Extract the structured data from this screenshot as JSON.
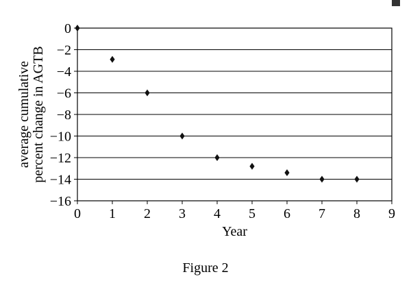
{
  "figure_caption": "Figure 2",
  "corner_marker_color": "#333333",
  "chart_data": {
    "type": "scatter",
    "title": "",
    "xlabel": "Year",
    "ylabel_lines": [
      "average cumulative",
      "percent change in AGTB"
    ],
    "xlim": [
      0,
      9
    ],
    "ylim": [
      -16,
      0
    ],
    "xticks": [
      0,
      1,
      2,
      3,
      4,
      5,
      6,
      7,
      8,
      9
    ],
    "xtick_labels": [
      "0",
      "1",
      "2",
      "3",
      "4",
      "5",
      "6",
      "7",
      "8",
      "9"
    ],
    "yticks": [
      0,
      -2,
      -4,
      -6,
      -8,
      -10,
      -12,
      -14,
      -16
    ],
    "ytick_labels": [
      "0",
      "−2",
      "−4",
      "−6",
      "−8",
      "−10",
      "−12",
      "−14",
      "−16"
    ],
    "grid": "horizontal",
    "marker": "diamond",
    "series": [
      {
        "x": [
          0,
          1,
          2,
          3,
          4,
          5,
          6,
          7,
          8
        ],
        "y": [
          0,
          -2.9,
          -6.0,
          -10.0,
          -12.0,
          -12.8,
          -13.4,
          -14.0,
          -14.0
        ]
      }
    ]
  }
}
